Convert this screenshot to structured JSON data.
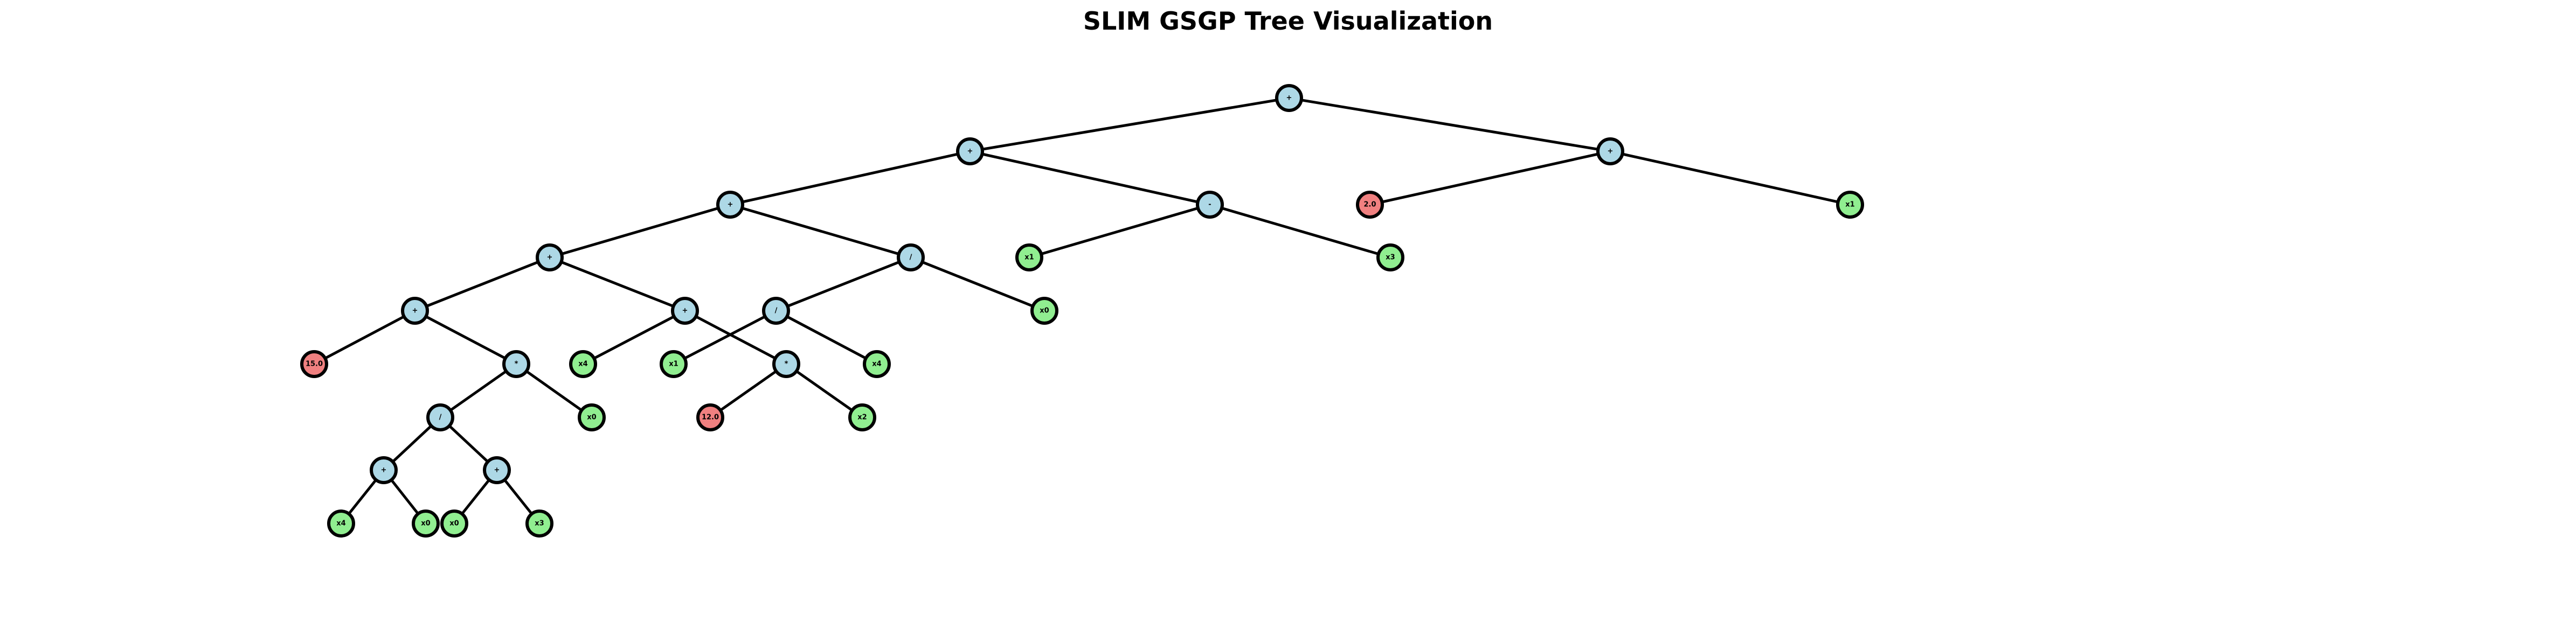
{
  "title": "SLIM GSGP Tree Visualization",
  "colors": {
    "operator": "#add8e6",
    "variable": "#90ee90",
    "constant": "#f08080",
    "edge": "#000000"
  },
  "nodes": [
    {
      "id": "n0",
      "label": "+",
      "kind": "operator"
    },
    {
      "id": "n1",
      "label": "+",
      "kind": "operator"
    },
    {
      "id": "n2",
      "label": "+",
      "kind": "operator"
    },
    {
      "id": "n3",
      "label": "+",
      "kind": "operator"
    },
    {
      "id": "n4",
      "label": "+",
      "kind": "operator"
    },
    {
      "id": "n5",
      "label": "15.0",
      "kind": "constant"
    },
    {
      "id": "n6",
      "label": "*",
      "kind": "operator"
    },
    {
      "id": "n7",
      "label": "/",
      "kind": "operator"
    },
    {
      "id": "n8",
      "label": "+",
      "kind": "operator"
    },
    {
      "id": "n9",
      "label": "x4",
      "kind": "variable"
    },
    {
      "id": "n10",
      "label": "x0",
      "kind": "variable"
    },
    {
      "id": "n11",
      "label": "+",
      "kind": "operator"
    },
    {
      "id": "n12",
      "label": "x0",
      "kind": "variable"
    },
    {
      "id": "n13",
      "label": "x3",
      "kind": "variable"
    },
    {
      "id": "n14",
      "label": "x0",
      "kind": "variable"
    },
    {
      "id": "n15",
      "label": "+",
      "kind": "operator"
    },
    {
      "id": "n16",
      "label": "x4",
      "kind": "variable"
    },
    {
      "id": "n17",
      "label": "x1",
      "kind": "variable"
    },
    {
      "id": "n18",
      "label": "/",
      "kind": "operator"
    },
    {
      "id": "n19",
      "label": "/",
      "kind": "operator"
    },
    {
      "id": "n20",
      "label": "*",
      "kind": "operator"
    },
    {
      "id": "n21",
      "label": "12.0",
      "kind": "constant"
    },
    {
      "id": "n22",
      "label": "x2",
      "kind": "variable"
    },
    {
      "id": "n23",
      "label": "x4",
      "kind": "variable"
    },
    {
      "id": "n24",
      "label": "x0",
      "kind": "variable"
    },
    {
      "id": "n25",
      "label": "-",
      "kind": "operator"
    },
    {
      "id": "n26",
      "label": "x1",
      "kind": "variable"
    },
    {
      "id": "n27",
      "label": "x3",
      "kind": "variable"
    },
    {
      "id": "n28",
      "label": "+",
      "kind": "operator"
    },
    {
      "id": "n29",
      "label": "2.0",
      "kind": "constant"
    },
    {
      "id": "n30",
      "label": "x1",
      "kind": "variable"
    }
  ],
  "edges": [
    [
      "n0",
      "n1"
    ],
    [
      "n0",
      "n28"
    ],
    [
      "n1",
      "n2"
    ],
    [
      "n1",
      "n25"
    ],
    [
      "n2",
      "n3"
    ],
    [
      "n2",
      "n18"
    ],
    [
      "n3",
      "n4"
    ],
    [
      "n3",
      "n15"
    ],
    [
      "n4",
      "n5"
    ],
    [
      "n4",
      "n6"
    ],
    [
      "n6",
      "n7"
    ],
    [
      "n6",
      "n14"
    ],
    [
      "n7",
      "n8"
    ],
    [
      "n7",
      "n11"
    ],
    [
      "n8",
      "n9"
    ],
    [
      "n8",
      "n10"
    ],
    [
      "n11",
      "n12"
    ],
    [
      "n11",
      "n13"
    ],
    [
      "n15",
      "n16"
    ],
    [
      "n15",
      "n20"
    ],
    [
      "n18",
      "n19"
    ],
    [
      "n18",
      "n24"
    ],
    [
      "n19",
      "n17"
    ],
    [
      "n19",
      "n23"
    ],
    [
      "n20",
      "n21"
    ],
    [
      "n20",
      "n22"
    ],
    [
      "n25",
      "n26"
    ],
    [
      "n25",
      "n27"
    ],
    [
      "n28",
      "n29"
    ],
    [
      "n28",
      "n30"
    ]
  ]
}
